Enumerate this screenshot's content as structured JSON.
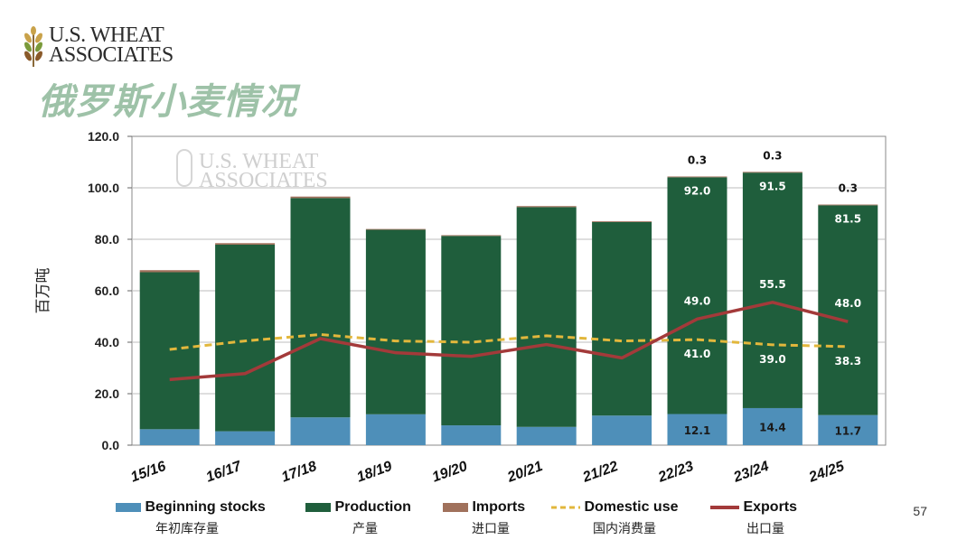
{
  "header": {
    "logo_line1": "U.S. WHEAT",
    "logo_line2": "ASSOCIATES",
    "title": "俄罗斯小麦情况",
    "page_number": "57"
  },
  "watermark": {
    "line1": "U.S. WHEAT",
    "line2": "ASSOCIATES"
  },
  "colors": {
    "beginning": "#4e8fb9",
    "production": "#1f5e3c",
    "imports": "#a0715c",
    "domestic": "#e2b73c",
    "exports": "#a33a3a",
    "title": "#9ec2a8"
  },
  "chart_data": {
    "type": "bar",
    "stacked": true,
    "ylabel": "百万吨",
    "ylim": [
      0,
      120
    ],
    "yticks": [
      "0.0",
      "20.0",
      "40.0",
      "60.0",
      "80.0",
      "100.0",
      "120.0"
    ],
    "categories": [
      "15/16",
      "16/17",
      "17/18",
      "18/19",
      "19/20",
      "20/21",
      "21/22",
      "22/23",
      "23/24",
      "24/25"
    ],
    "series": [
      {
        "name": "Beginning stocks",
        "name_zh": "年初库存量",
        "kind": "bar",
        "values": [
          6.2,
          5.4,
          10.8,
          12.0,
          7.7,
          7.1,
          11.5,
          12.1,
          14.4,
          11.7
        ]
      },
      {
        "name": "Production",
        "name_zh": "产量",
        "kind": "bar",
        "values": [
          61.0,
          72.5,
          85.2,
          71.7,
          73.6,
          85.4,
          75.2,
          92.0,
          91.5,
          81.5
        ]
      },
      {
        "name": "Imports",
        "name_zh": "进口量",
        "kind": "bar",
        "values": [
          0.8,
          0.6,
          0.6,
          0.3,
          0.3,
          0.4,
          0.3,
          0.3,
          0.3,
          0.3
        ]
      },
      {
        "name": "Domestic use",
        "name_zh": "国内消费量",
        "kind": "line",
        "dashed": true,
        "values": [
          37.2,
          40.5,
          43.0,
          40.5,
          40.0,
          42.5,
          40.5,
          41.0,
          39.0,
          38.3
        ]
      },
      {
        "name": "Exports",
        "name_zh": "出口量",
        "kind": "line",
        "values": [
          25.5,
          27.8,
          41.4,
          35.9,
          34.5,
          39.1,
          33.9,
          49.0,
          55.5,
          48.0
        ]
      }
    ],
    "data_labels": {
      "beginning": [
        "",
        "",
        "",
        "",
        "",
        "",
        "",
        "12.1",
        "14.4",
        "11.7"
      ],
      "production": [
        "",
        "",
        "",
        "",
        "",
        "",
        "",
        "92.0",
        "91.5",
        "81.5"
      ],
      "imports": [
        "",
        "",
        "",
        "",
        "",
        "",
        "",
        "0.3",
        "0.3",
        "0.3"
      ],
      "domestic": [
        "",
        "",
        "",
        "",
        "",
        "",
        "",
        "41.0",
        "39.0",
        "38.3"
      ],
      "exports": [
        "",
        "",
        "",
        "",
        "",
        "",
        "",
        "49.0",
        "55.5",
        "48.0"
      ]
    }
  }
}
